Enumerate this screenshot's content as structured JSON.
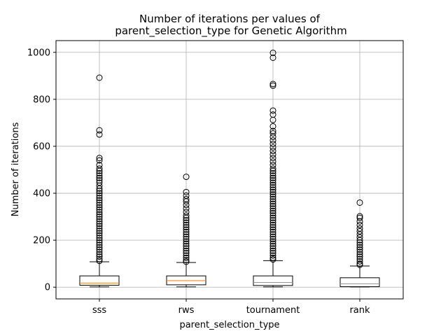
{
  "chart_data": {
    "type": "box",
    "title_line1": "Number of iterations per values of",
    "title_line2": "parent_selection_type for Genetic Algorithm",
    "xlabel": "parent_selection_type",
    "ylabel": "Number of iterations",
    "ylim": [
      -50,
      1050
    ],
    "yticks": [
      0,
      200,
      400,
      600,
      800,
      1000
    ],
    "grid": true,
    "categories": [
      "sss",
      "rws",
      "tournament",
      "rank"
    ],
    "boxes": [
      {
        "category": "sss",
        "whisker_low": 1,
        "q1": 8,
        "median": 18,
        "q3": 48,
        "whisker_high": 108,
        "outliers": [
          892,
          668,
          650,
          550,
          540,
          520,
          505,
          495,
          485,
          475,
          465,
          455,
          445,
          432,
          420,
          410,
          400,
          390,
          380,
          370,
          360,
          350,
          340,
          330,
          320,
          310,
          300,
          290,
          280,
          270,
          260,
          250,
          240,
          230,
          220,
          210,
          200,
          190,
          180,
          170,
          160,
          150,
          140,
          130,
          120,
          112
        ]
      },
      {
        "category": "rws",
        "whisker_low": 1,
        "q1": 10,
        "median": 28,
        "q3": 48,
        "whisker_high": 105,
        "outliers": [
          470,
          405,
          390,
          375,
          365,
          350,
          335,
          320,
          305,
          295,
          285,
          275,
          265,
          255,
          245,
          235,
          225,
          215,
          205,
          195,
          185,
          175,
          165,
          155,
          145,
          135,
          125,
          115,
          108
        ]
      },
      {
        "category": "tournament",
        "whisker_low": 1,
        "q1": 7,
        "median": 20,
        "q3": 48,
        "whisker_high": 113,
        "outliers": [
          998,
          977,
          865,
          858,
          752,
          735,
          712,
          685,
          665,
          655,
          640,
          625,
          610,
          595,
          580,
          565,
          550,
          535,
          520,
          505,
          495,
          485,
          475,
          465,
          455,
          445,
          435,
          425,
          415,
          405,
          395,
          385,
          375,
          365,
          355,
          345,
          335,
          325,
          315,
          305,
          295,
          285,
          275,
          265,
          255,
          245,
          235,
          225,
          215,
          205,
          195,
          185,
          175,
          165,
          155,
          145,
          135,
          125,
          118
        ]
      },
      {
        "category": "rank",
        "whisker_low": 1,
        "q1": 2,
        "median": 14,
        "q3": 40,
        "whisker_high": 90,
        "outliers": [
          360,
          302,
          295,
          280,
          265,
          250,
          238,
          225,
          212,
          200,
          190,
          180,
          170,
          160,
          150,
          140,
          130,
          120,
          110,
          100,
          95
        ]
      }
    ]
  }
}
